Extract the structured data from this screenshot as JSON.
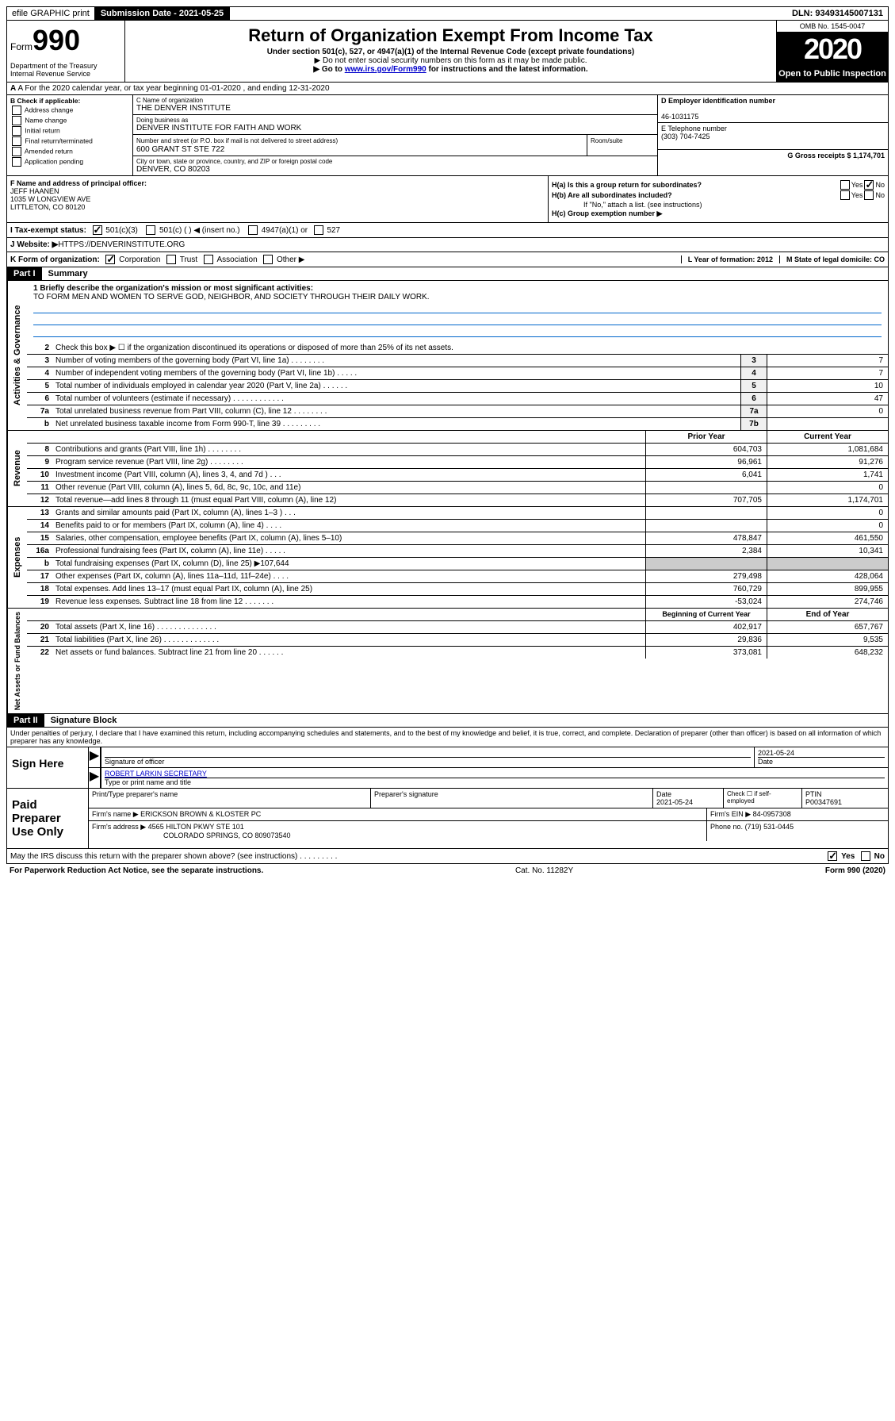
{
  "topbar": {
    "efile": "efile GRAPHIC print",
    "submission": "Submission Date - 2021-05-25",
    "dln": "DLN: 93493145007131"
  },
  "header": {
    "form_prefix": "Form",
    "form_num": "990",
    "dept": "Department of the Treasury Internal Revenue Service",
    "title": "Return of Organization Exempt From Income Tax",
    "sub1": "Under section 501(c), 527, or 4947(a)(1) of the Internal Revenue Code (except private foundations)",
    "sub2": "▶ Do not enter social security numbers on this form as it may be made public.",
    "sub3_pre": "▶ Go to ",
    "sub3_link": "www.irs.gov/Form990",
    "sub3_post": " for instructions and the latest information.",
    "omb": "OMB No. 1545-0047",
    "year": "2020",
    "open": "Open to Public Inspection"
  },
  "lineA": "A For the 2020 calendar year, or tax year beginning 01-01-2020   , and ending 12-31-2020",
  "colB": {
    "header": "B Check if applicable:",
    "items": [
      "Address change",
      "Name change",
      "Initial return",
      "Final return/terminated",
      "Amended return",
      "Application pending"
    ]
  },
  "colC": {
    "name_label": "C Name of organization",
    "name": "THE DENVER INSTITUTE",
    "dba_label": "Doing business as",
    "dba": "DENVER INSTITUTE FOR FAITH AND WORK",
    "addr_label": "Number and street (or P.O. box if mail is not delivered to street address)",
    "addr": "600 GRANT ST STE 722",
    "room_label": "Room/suite",
    "city_label": "City or town, state or province, country, and ZIP or foreign postal code",
    "city": "DENVER, CO  80203"
  },
  "colDE": {
    "d_label": "D Employer identification number",
    "d_val": "46-1031175",
    "e_label": "E Telephone number",
    "e_val": "(303) 704-7425",
    "g_label": "G Gross receipts $ 1,174,701"
  },
  "colF": {
    "label": "F Name and address of principal officer:",
    "name": "JEFF HAANEN",
    "addr1": "1035 W LONGVIEW AVE",
    "addr2": "LITTLETON, CO  80120"
  },
  "colH": {
    "ha": "H(a)  Is this a group return for subordinates?",
    "hb": "H(b)  Are all subordinates included?",
    "hb_note": "If \"No,\" attach a list. (see instructions)",
    "hc": "H(c)  Group exemption number ▶",
    "yes": "Yes",
    "no": "No"
  },
  "rowI": {
    "label": "I  Tax-exempt status:",
    "opts": [
      "501(c)(3)",
      "501(c) (  ) ◀ (insert no.)",
      "4947(a)(1) or",
      "527"
    ]
  },
  "rowJ": {
    "label": "J  Website: ▶",
    "val": "  HTTPS://DENVERINSTITUTE.ORG"
  },
  "rowK": {
    "label": "K Form of organization:",
    "opts": [
      "Corporation",
      "Trust",
      "Association",
      "Other ▶"
    ],
    "l": "L Year of formation: 2012",
    "m": "M State of legal domicile: CO"
  },
  "part1": {
    "header": "Part I",
    "title": "Summary",
    "line1_label": "1  Briefly describe the organization's mission or most significant activities:",
    "line1_val": "TO FORM MEN AND WOMEN TO SERVE GOD, NEIGHBOR, AND SOCIETY THROUGH THEIR DAILY WORK.",
    "line2": "Check this box ▶ ☐ if the organization discontinued its operations or disposed of more than 25% of its net assets.",
    "gov": [
      {
        "n": "3",
        "d": "Number of voting members of the governing body (Part VI, line 1a)   .    .    .    .    .    .    .    .",
        "b": "3",
        "v": "7"
      },
      {
        "n": "4",
        "d": "Number of independent voting members of the governing body (Part VI, line 1b)   .    .    .    .    .",
        "b": "4",
        "v": "7"
      },
      {
        "n": "5",
        "d": "Total number of individuals employed in calendar year 2020 (Part V, line 2a)   .    .    .    .    .    .",
        "b": "5",
        "v": "10"
      },
      {
        "n": "6",
        "d": "Total number of volunteers (estimate if necessary)   .    .    .    .    .    .    .    .    .    .    .    .",
        "b": "6",
        "v": "47"
      },
      {
        "n": "7a",
        "d": "Total unrelated business revenue from Part VIII, column (C), line 12   .    .    .    .    .    .    .    .",
        "b": "7a",
        "v": "0"
      },
      {
        "n": "b",
        "d": "Net unrelated business taxable income from Form 990-T, line 39   .    .    .    .    .    .    .    .    .",
        "b": "7b",
        "v": ""
      }
    ],
    "rev_head1": "Prior Year",
    "rev_head2": "Current Year",
    "rev": [
      {
        "n": "8",
        "d": "Contributions and grants (Part VIII, line 1h)   .    .    .    .    .    .    .    .",
        "v1": "604,703",
        "v2": "1,081,684"
      },
      {
        "n": "9",
        "d": "Program service revenue (Part VIII, line 2g)   .    .    .    .    .    .    .    .",
        "v1": "96,961",
        "v2": "91,276"
      },
      {
        "n": "10",
        "d": "Investment income (Part VIII, column (A), lines 3, 4, and 7d )   .    .    .",
        "v1": "6,041",
        "v2": "1,741"
      },
      {
        "n": "11",
        "d": "Other revenue (Part VIII, column (A), lines 5, 6d, 8c, 9c, 10c, and 11e)",
        "v1": "",
        "v2": "0"
      },
      {
        "n": "12",
        "d": "Total revenue—add lines 8 through 11 (must equal Part VIII, column (A), line 12)",
        "v1": "707,705",
        "v2": "1,174,701"
      }
    ],
    "exp": [
      {
        "n": "13",
        "d": "Grants and similar amounts paid (Part IX, column (A), lines 1–3 )   .    .    .",
        "v1": "",
        "v2": "0"
      },
      {
        "n": "14",
        "d": "Benefits paid to or for members (Part IX, column (A), line 4)   .    .    .    .",
        "v1": "",
        "v2": "0"
      },
      {
        "n": "15",
        "d": "Salaries, other compensation, employee benefits (Part IX, column (A), lines 5–10)",
        "v1": "478,847",
        "v2": "461,550"
      },
      {
        "n": "16a",
        "d": "Professional fundraising fees (Part IX, column (A), line 11e)   .    .    .    .    .",
        "v1": "2,384",
        "v2": "10,341"
      },
      {
        "n": "b",
        "d": "Total fundraising expenses (Part IX, column (D), line 25) ▶107,644",
        "v1": "__shade__",
        "v2": "__shade__"
      },
      {
        "n": "17",
        "d": "Other expenses (Part IX, column (A), lines 11a–11d, 11f–24e)   .    .    .    .",
        "v1": "279,498",
        "v2": "428,064"
      },
      {
        "n": "18",
        "d": "Total expenses. Add lines 13–17 (must equal Part IX, column (A), line 25)",
        "v1": "760,729",
        "v2": "899,955"
      },
      {
        "n": "19",
        "d": "Revenue less expenses. Subtract line 18 from line 12   .    .    .    .    .    .    .",
        "v1": "-53,024",
        "v2": "274,746"
      }
    ],
    "net_head1": "Beginning of Current Year",
    "net_head2": "End of Year",
    "net": [
      {
        "n": "20",
        "d": "Total assets (Part X, line 16)   .    .    .    .    .    .    .    .    .    .    .    .    .    .",
        "v1": "402,917",
        "v2": "657,767"
      },
      {
        "n": "21",
        "d": "Total liabilities (Part X, line 26)   .    .    .    .    .    .    .    .    .    .    .    .    .",
        "v1": "29,836",
        "v2": "9,535"
      },
      {
        "n": "22",
        "d": "Net assets or fund balances. Subtract line 21 from line 20   .    .    .    .    .    .",
        "v1": "373,081",
        "v2": "648,232"
      }
    ]
  },
  "part2": {
    "header": "Part II",
    "title": "Signature Block",
    "declar": "Under penalties of perjury, I declare that I have examined this return, including accompanying schedules and statements, and to the best of my knowledge and belief, it is true, correct, and complete. Declaration of preparer (other than officer) is based on all information of which preparer has any knowledge."
  },
  "sign": {
    "left": "Sign Here",
    "sig_label": "Signature of officer",
    "date": "2021-05-24",
    "date_label": "Date",
    "name": "ROBERT LARKIN  SECRETARY",
    "name_label": "Type or print name and title"
  },
  "paid": {
    "left": "Paid Preparer Use Only",
    "h1": "Print/Type preparer's name",
    "h2": "Preparer's signature",
    "h3": "Date",
    "h4": "Check ☐ if self-employed",
    "h5": "PTIN",
    "date": "2021-05-24",
    "ptin": "P00347691",
    "firm_label": "Firm's name    ▶",
    "firm": "ERICKSON BROWN & KLOSTER PC",
    "ein_label": "Firm's EIN ▶",
    "ein": "84-0957308",
    "addr_label": "Firm's address ▶",
    "addr1": "4565 HILTON PKWY STE 101",
    "addr2": "COLORADO SPRINGS, CO  809073540",
    "phone_label": "Phone no.",
    "phone": "(719) 531-0445"
  },
  "discuss": {
    "text": "May the IRS discuss this return with the preparer shown above? (see instructions)   .    .    .    .    .    .    .    .    .",
    "yes": "Yes",
    "no": "No"
  },
  "footer": {
    "left": "For Paperwork Reduction Act Notice, see the separate instructions.",
    "mid": "Cat. No. 11282Y",
    "right": "Form 990 (2020)"
  },
  "vtabs": {
    "gov": "Activities & Governance",
    "rev": "Revenue",
    "exp": "Expenses",
    "net": "Net Assets or Fund Balances"
  }
}
